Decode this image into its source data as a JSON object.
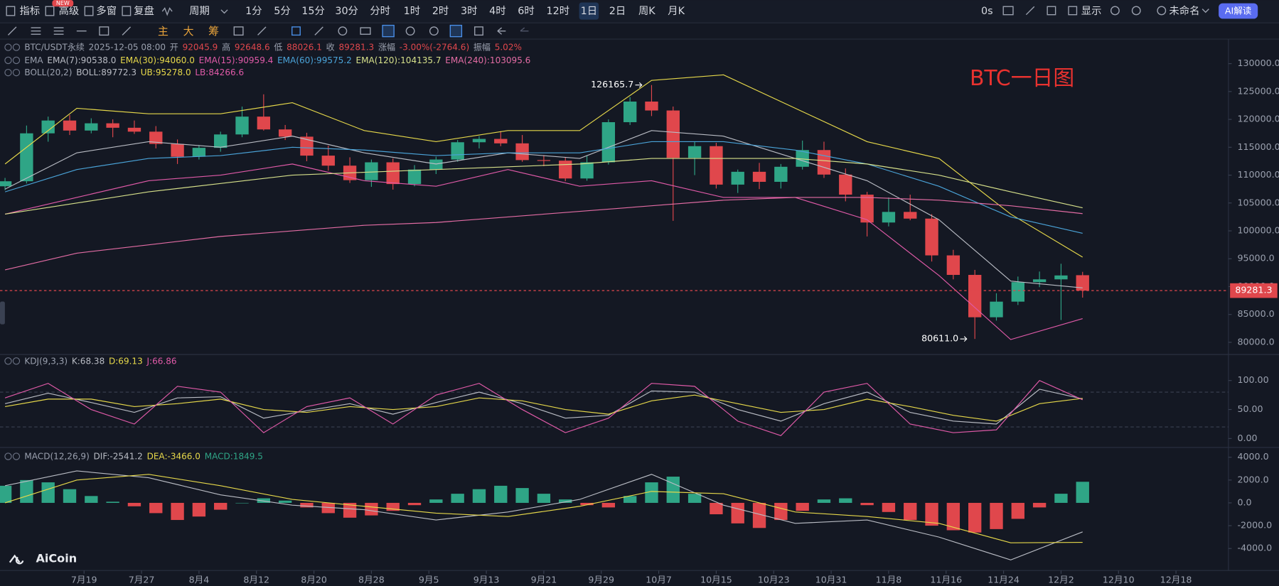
{
  "toolbar": {
    "badge": "NEW",
    "left": [
      "指标",
      "高级",
      "多窗",
      "复盘",
      "周期"
    ],
    "periods": [
      "1分",
      "5分",
      "15分",
      "30分",
      "分时",
      "1时",
      "2时",
      "3时",
      "4时",
      "6时",
      "12时",
      "1日",
      "2日",
      "周K",
      "月K"
    ],
    "active_period": "1日",
    "right": [
      "0s",
      "显示",
      "未命名",
      "AI解读"
    ]
  },
  "draw_tools": [
    "主",
    "大",
    "筹"
  ],
  "watermark": "AiCoin",
  "chart_data": [
    {
      "type": "candlestick",
      "title": "BTC一日图",
      "title_color": "#e8322f",
      "up_color": "#2fa586",
      "down_color": "#e0474c",
      "xlim": [
        -0.7,
        170.3
      ],
      "ylim": [
        78250,
        134400
      ],
      "xticks": [
        {
          "value": 11,
          "label": "7月19"
        },
        {
          "value": 19,
          "label": "7月27"
        },
        {
          "value": 27,
          "label": "8月4"
        },
        {
          "value": 35,
          "label": "8月12"
        },
        {
          "value": 43,
          "label": "8月20"
        },
        {
          "value": 51,
          "label": "8月28"
        },
        {
          "value": 59,
          "label": "9月5"
        },
        {
          "value": 67,
          "label": "9月13"
        },
        {
          "value": 75,
          "label": "9月21"
        },
        {
          "value": 83,
          "label": "9月29"
        },
        {
          "value": 91,
          "label": "10月7"
        },
        {
          "value": 99,
          "label": "10月15"
        },
        {
          "value": 107,
          "label": "10月23"
        },
        {
          "value": 115,
          "label": "10月31"
        },
        {
          "value": 123,
          "label": "11月8"
        },
        {
          "value": 131,
          "label": "11月16"
        },
        {
          "value": 139,
          "label": "11月24"
        },
        {
          "value": 147,
          "label": "12月2"
        },
        {
          "value": 155,
          "label": "12月10"
        },
        {
          "value": 163,
          "label": "12月18"
        }
      ],
      "yticks": [
        {
          "value": 80000,
          "label": "80000.0"
        },
        {
          "value": 85000,
          "label": "85000.0"
        },
        {
          "value": 90000,
          "label": "90000.0"
        },
        {
          "value": 95000,
          "label": "95000.0"
        },
        {
          "value": 100000,
          "label": "100000.0"
        },
        {
          "value": 105000,
          "label": "105000.0"
        },
        {
          "value": 110000,
          "label": "110000.0"
        },
        {
          "value": 115000,
          "label": "115000.0"
        },
        {
          "value": 120000,
          "label": "120000.0"
        },
        {
          "value": 125000,
          "label": "125000.0"
        },
        {
          "value": 130000,
          "label": "130000.0"
        }
      ],
      "legend": [
        [
          {
            "text": "BTC/USDT永续",
            "color": "#9aa0ae"
          },
          {
            "text": "2025-12-05 08:00",
            "color": "#9aa0ae"
          },
          {
            "text": "开",
            "color": "#9aa0ae"
          },
          {
            "text": "92045.9",
            "color": "#e0474c"
          },
          {
            "text": "高",
            "color": "#9aa0ae"
          },
          {
            "text": "92648.6",
            "color": "#e0474c"
          },
          {
            "text": "低",
            "color": "#9aa0ae"
          },
          {
            "text": "88026.1",
            "color": "#e0474c"
          },
          {
            "text": "收",
            "color": "#9aa0ae"
          },
          {
            "text": "89281.3",
            "color": "#e0474c"
          },
          {
            "text": "涨幅",
            "color": "#9aa0ae"
          },
          {
            "text": "-3.00%(-2764.6)",
            "color": "#e0474c"
          },
          {
            "text": "振幅",
            "color": "#9aa0ae"
          },
          {
            "text": "5.02%",
            "color": "#e0474c"
          }
        ],
        [
          {
            "text": "EMA",
            "color": "#9aa0ae"
          },
          {
            "text": "EMA(7):90538.0",
            "color": "#b9bcc4"
          },
          {
            "text": "EMA(30):94060.0",
            "color": "#e6d84a"
          },
          {
            "text": "EMA(15):90959.4",
            "color": "#e05aa8"
          },
          {
            "text": "EMA(60):99575.2",
            "color": "#4aa3d8"
          },
          {
            "text": "EMA(120):104135.7",
            "color": "#d6e08a"
          },
          {
            "text": "EMA(240):103095.6",
            "color": "#e36ca4"
          }
        ],
        [
          {
            "text": "BOLL(20,2)",
            "color": "#9aa0ae"
          },
          {
            "text": "BOLL:89772.3",
            "color": "#b9bcc4"
          },
          {
            "text": "UB:95278.0",
            "color": "#e6d84a"
          },
          {
            "text": "LB:84266.6",
            "color": "#e05aa8"
          }
        ]
      ],
      "candles": {
        "x": [
          0,
          3,
          6,
          9,
          12,
          15,
          18,
          21,
          24,
          27,
          30,
          33,
          36,
          39,
          42,
          45,
          48,
          51,
          54,
          57,
          60,
          63,
          66,
          69,
          72,
          75,
          78,
          81,
          84,
          87,
          90,
          93,
          96,
          99,
          102,
          105,
          108,
          111,
          114,
          117,
          120,
          123,
          126,
          129,
          132,
          135,
          138,
          141,
          144,
          147,
          150
        ],
        "open": [
          108000,
          108900,
          117500,
          119800,
          118000,
          119300,
          118500,
          117800,
          115600,
          113300,
          114900,
          117300,
          120500,
          118200,
          116900,
          113500,
          111700,
          109100,
          112300,
          108400,
          111000,
          112800,
          115900,
          116500,
          115700,
          112700,
          112600,
          109400,
          112300,
          119500,
          123200,
          121600,
          113100,
          115200,
          108300,
          110600,
          108800,
          111500,
          114500,
          110100,
          106500,
          101500,
          103400,
          102200,
          95600,
          92100,
          84500,
          87300,
          90800,
          91300,
          92045.9
        ],
        "high": [
          109500,
          118900,
          120500,
          120800,
          120200,
          120000,
          119800,
          118800,
          116400,
          115400,
          117800,
          122300,
          124500,
          119000,
          117600,
          115300,
          113200,
          112800,
          113000,
          111800,
          113300,
          116300,
          117000,
          117900,
          117200,
          113600,
          113200,
          113500,
          120000,
          124000,
          126165.7,
          122300,
          116000,
          115800,
          111000,
          112200,
          112000,
          116200,
          116000,
          111200,
          107000,
          106000,
          106500,
          103000,
          96600,
          93000,
          88800,
          91800,
          92700,
          94100,
          92648.6
        ],
        "low": [
          107300,
          108500,
          116000,
          117200,
          117500,
          116800,
          117400,
          114800,
          112000,
          112800,
          114200,
          116800,
          118000,
          116300,
          112500,
          110800,
          108600,
          107900,
          107400,
          108000,
          110200,
          112400,
          114800,
          115200,
          112400,
          111600,
          108900,
          109000,
          111900,
          119000,
          120600,
          101800,
          110000,
          107600,
          106800,
          107500,
          107600,
          111000,
          109500,
          105300,
          99000,
          100800,
          101900,
          94500,
          91300,
          80611,
          83900,
          86700,
          89900,
          84000,
          88026.1
        ],
        "close": [
          108900,
          117500,
          119800,
          118000,
          119300,
          118500,
          117800,
          115600,
          113300,
          114900,
          117300,
          120500,
          118200,
          116900,
          113500,
          111700,
          109100,
          112300,
          108400,
          111000,
          112800,
          115900,
          116500,
          115700,
          112700,
          112600,
          109400,
          112300,
          119500,
          123200,
          121600,
          113100,
          115200,
          108300,
          110600,
          108800,
          111500,
          114500,
          110100,
          106500,
          101500,
          103400,
          102200,
          95600,
          92100,
          84500,
          87300,
          90800,
          91300,
          92000,
          89281.3
        ]
      },
      "overlays": {
        "x": [
          0,
          10,
          20,
          30,
          40,
          50,
          60,
          70,
          80,
          90,
          100,
          110,
          120,
          130,
          140,
          150
        ],
        "series": [
          {
            "color": "#e6d84a",
            "values": [
              112000,
              122000,
              121000,
              121000,
              123000,
              118000,
              116000,
              118000,
              118000,
              127000,
              128000,
              122000,
              116000,
              113000,
              103000,
              95278
            ]
          },
          {
            "color": "#e05aa8",
            "values": [
              103000,
              106000,
              109000,
              110000,
              112000,
              109000,
              108000,
              111000,
              108000,
              109000,
              106000,
              106000,
              102000,
              92000,
              80500,
              84266.6
            ]
          },
          {
            "color": "#b9bcc4",
            "values": [
              107500,
              114000,
              116000,
              115000,
              117000,
              114000,
              112000,
              114000,
              113000,
              118000,
              117000,
              113000,
              109000,
              102000,
              91000,
              89772.3
            ]
          },
          {
            "color": "#4aa3d8",
            "values": [
              107000,
              111000,
              113000,
              113500,
              115000,
              114500,
              113500,
              114000,
              114000,
              116000,
              116000,
              114500,
              112000,
              108000,
              102500,
              99575.2
            ]
          },
          {
            "color": "#d6e08a",
            "values": [
              103000,
              105000,
              107000,
              108500,
              110000,
              110500,
              111000,
              111500,
              112000,
              113000,
              113000,
              113000,
              112000,
              110000,
              107000,
              104135.7
            ]
          },
          {
            "color": "#e36ca4",
            "values": [
              93000,
              96000,
              97500,
              99000,
              100000,
              101000,
              101500,
              102500,
              103500,
              104500,
              105500,
              106000,
              106000,
              105500,
              104500,
              103095.6
            ]
          }
        ]
      },
      "high_marker": {
        "value": 126165.7,
        "x": 90
      },
      "low_marker": {
        "value": 80611,
        "label": "80611.0",
        "x": 135
      },
      "last_price": {
        "value": 89281.3,
        "color": "#e0474c"
      }
    },
    {
      "type": "line",
      "xlim": [
        -0.7,
        170.3
      ],
      "ylim": [
        -14,
        142
      ],
      "yticks": [
        {
          "value": 100,
          "label": "100.00"
        },
        {
          "value": 50,
          "label": "50.00"
        },
        {
          "value": 0,
          "label": "0.00"
        }
      ],
      "reference_lines": [
        80,
        20
      ],
      "legend": [
        [
          {
            "text": "KDJ(9,3,3)",
            "color": "#9aa0ae"
          },
          {
            "text": "K:68.38",
            "color": "#b9bcc4"
          },
          {
            "text": "D:69.13",
            "color": "#e6d84a"
          },
          {
            "text": "J:66.86",
            "color": "#e05aa8"
          }
        ]
      ],
      "x": [
        0,
        6,
        12,
        18,
        24,
        30,
        36,
        42,
        48,
        54,
        60,
        66,
        72,
        78,
        84,
        90,
        96,
        102,
        108,
        114,
        120,
        126,
        132,
        138,
        144,
        150
      ],
      "series": [
        {
          "color": "#b9bcc4",
          "values": [
            60,
            78,
            62,
            45,
            70,
            72,
            35,
            48,
            60,
            42,
            62,
            80,
            60,
            35,
            40,
            82,
            80,
            50,
            30,
            60,
            80,
            45,
            30,
            25,
            85,
            68.38
          ]
        },
        {
          "color": "#e6d84a",
          "values": [
            55,
            68,
            68,
            55,
            60,
            68,
            50,
            45,
            55,
            50,
            55,
            70,
            65,
            50,
            42,
            65,
            75,
            60,
            45,
            50,
            68,
            55,
            40,
            30,
            60,
            69.13
          ]
        },
        {
          "color": "#e05aa8",
          "values": [
            70,
            95,
            50,
            25,
            90,
            80,
            10,
            55,
            70,
            25,
            75,
            95,
            50,
            10,
            35,
            95,
            90,
            30,
            5,
            80,
            95,
            25,
            10,
            15,
            100,
            66.86
          ]
        }
      ]
    },
    {
      "type": "bar",
      "xlim": [
        -0.7,
        170.3
      ],
      "ylim": [
        -5930,
        4790
      ],
      "yticks": [
        {
          "value": 4000,
          "label": "4000.0"
        },
        {
          "value": 2000,
          "label": "2000.0"
        },
        {
          "value": 0,
          "label": "0.0"
        },
        {
          "value": -2000,
          "label": "-2000.0"
        },
        {
          "value": -4000,
          "label": "-4000.0"
        }
      ],
      "up_color": "#2fa586",
      "down_color": "#e0474c",
      "legend": [
        [
          {
            "text": "MACD(12,26,9)",
            "color": "#9aa0ae"
          },
          {
            "text": "DIF:-2541.2",
            "color": "#b9bcc4"
          },
          {
            "text": "DEA:-3466.0",
            "color": "#e6d84a"
          },
          {
            "text": "MACD:1849.5",
            "color": "#2fa586"
          }
        ]
      ],
      "x": [
        0,
        3,
        6,
        9,
        12,
        15,
        18,
        21,
        24,
        27,
        30,
        33,
        36,
        39,
        42,
        45,
        48,
        51,
        54,
        57,
        60,
        63,
        66,
        69,
        72,
        75,
        78,
        81,
        84,
        87,
        90,
        93,
        96,
        99,
        102,
        105,
        108,
        111,
        114,
        117,
        120,
        123,
        126,
        129,
        132,
        135,
        138,
        141,
        144,
        147,
        150
      ],
      "values": [
        1500,
        2000,
        1800,
        1200,
        600,
        100,
        -300,
        -900,
        -1500,
        -1200,
        -600,
        0,
        400,
        200,
        -400,
        -900,
        -1300,
        -1100,
        -700,
        -200,
        300,
        800,
        1200,
        1500,
        1300,
        800,
        300,
        -200,
        -400,
        600,
        1800,
        2300,
        800,
        -1000,
        -1800,
        -2200,
        -1500,
        -700,
        300,
        400,
        -200,
        -800,
        -1500,
        -2000,
        -2400,
        -2600,
        -2300,
        -1400,
        -400,
        800,
        1849.5
      ],
      "lines": {
        "x": [
          0,
          10,
          20,
          30,
          40,
          50,
          60,
          70,
          80,
          90,
          100,
          110,
          120,
          130,
          140,
          150
        ],
        "series": [
          {
            "color": "#b9bcc4",
            "values": [
              1500,
              2800,
              2200,
              700,
              -200,
              -600,
              -1500,
              -800,
              300,
              2500,
              -200,
              -1800,
              -1500,
              -3000,
              -5000,
              -2541.2
            ]
          },
          {
            "color": "#e6d84a",
            "values": [
              0,
              2000,
              2500,
              1500,
              300,
              -300,
              -900,
              -1200,
              -300,
              1000,
              800,
              -800,
              -1200,
              -1800,
              -3500,
              -3466
            ]
          }
        ]
      }
    }
  ]
}
